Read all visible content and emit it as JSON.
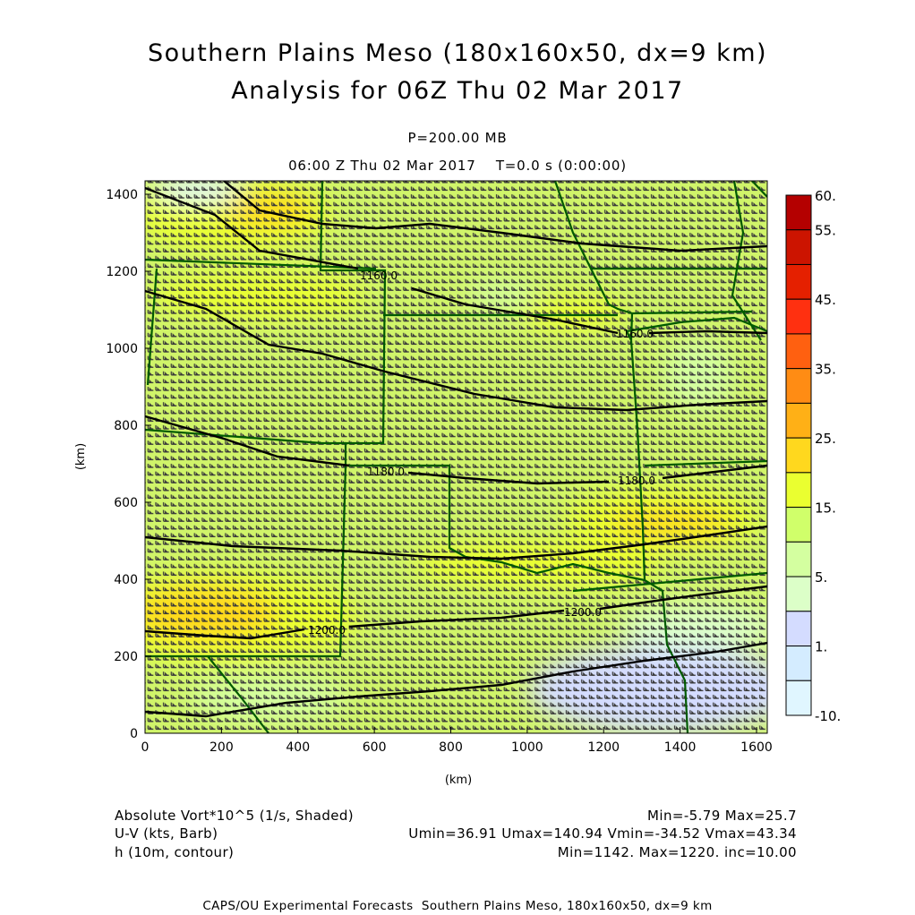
{
  "title": {
    "line1": "Southern Plains Meso (180x160x50, dx=9 km)",
    "line2": "Analysis for 06Z Thu 02 Mar 2017"
  },
  "subtitle": {
    "level": "P=200.00 MB",
    "time": "06:00 Z Thu 02 Mar 2017    T=0.0 s (0:00:00)"
  },
  "axes": {
    "xlabel": "(km)",
    "ylabel": "(km)",
    "xticks": [
      0,
      200,
      400,
      600,
      800,
      1000,
      1200,
      1400,
      1600
    ],
    "yticks": [
      0,
      200,
      400,
      600,
      800,
      1000,
      1200,
      1400
    ],
    "xlim": [
      0,
      1628
    ],
    "ylim": [
      0,
      1435
    ]
  },
  "colorbar": {
    "labels": [
      "60.",
      "55.",
      "45.",
      "35.",
      "25.",
      "15.",
      "5.",
      "1.",
      "-10."
    ],
    "colors": [
      "#b40000",
      "#cc1400",
      "#e52000",
      "#ff3010",
      "#ff6010",
      "#ff8c14",
      "#ffb016",
      "#ffd81e",
      "#eaff30",
      "#d0ff6a",
      "#d4ffa0",
      "#dcffc8",
      "#d4dcff",
      "#d4ecff",
      "#e0f6ff"
    ]
  },
  "contour_labels": [
    "1160.0",
    "1160.0",
    "1180.0",
    "1180.0",
    "1200.0",
    "1200.0"
  ],
  "legend": {
    "row1_left": "Absolute Vort*10^5 (1/s, Shaded)",
    "row1_right": "Min=-5.79 Max=25.7",
    "row2_left": "U-V (kts, Barb)",
    "row2_right": "Umin=36.91 Umax=140.94 Vmin=-34.52 Vmax=43.34",
    "row3_left": "h (10m, contour)",
    "row3_right": "Min=1142. Max=1220. inc=10.00"
  },
  "footer": "CAPS/OU Experimental Forecasts  Southern Plains Meso, 180x160x50, dx=9 km",
  "colors": {
    "state_lines": "#005a00",
    "contours": "#000000",
    "barbs": "#3a3a3a",
    "accent": "#c8f064"
  }
}
